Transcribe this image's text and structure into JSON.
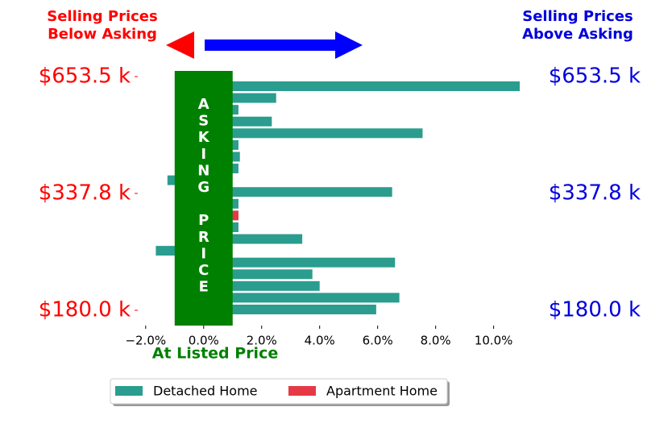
{
  "chart_data": {
    "type": "barh",
    "header_left": "Selling Prices\nBelow Asking",
    "header_right": "Selling Prices\nAbove Asking",
    "band_label": "ASKING PRICE",
    "x_label": "At Listed Price",
    "categories": [
      null,
      null,
      null,
      null,
      null,
      null,
      null,
      null,
      null,
      null,
      null,
      null,
      null,
      null,
      null,
      null,
      null,
      null,
      null,
      null
    ],
    "series": [
      {
        "name": "Detached Home",
        "color": "#2a9d8f",
        "values": [
          10.9,
          2.5,
          1.2,
          2.35,
          7.55,
          1.2,
          1.25,
          1.2,
          -1.25,
          6.5,
          1.2,
          null,
          1.2,
          3.4,
          -1.65,
          6.6,
          3.75,
          4.0,
          6.75,
          5.95
        ]
      },
      {
        "name": "Apartment Home",
        "color": "#e63946",
        "values": [
          null,
          null,
          null,
          null,
          null,
          null,
          null,
          null,
          null,
          null,
          null,
          1.2,
          null,
          null,
          null,
          null,
          null,
          null,
          null,
          null
        ]
      }
    ],
    "y_labels": [
      "$653.5 k",
      "$337.8 k",
      "$180.0 k"
    ],
    "xlim": [
      -2.3,
      10.9
    ],
    "xticks": [
      {
        "value": -2,
        "label": "−2.0%"
      },
      {
        "value": 0,
        "label": "0.0%"
      },
      {
        "value": 2,
        "label": "2.0%"
      },
      {
        "value": 4,
        "label": "4.0%"
      },
      {
        "value": 6,
        "label": "6.0%"
      },
      {
        "value": 8,
        "label": "8.0%"
      },
      {
        "value": 10,
        "label": "10.0%"
      }
    ],
    "band": [
      -1,
      1
    ],
    "left_label_color": "#ff0000",
    "right_label_color": "#0000dd",
    "band_color": "#008000"
  }
}
